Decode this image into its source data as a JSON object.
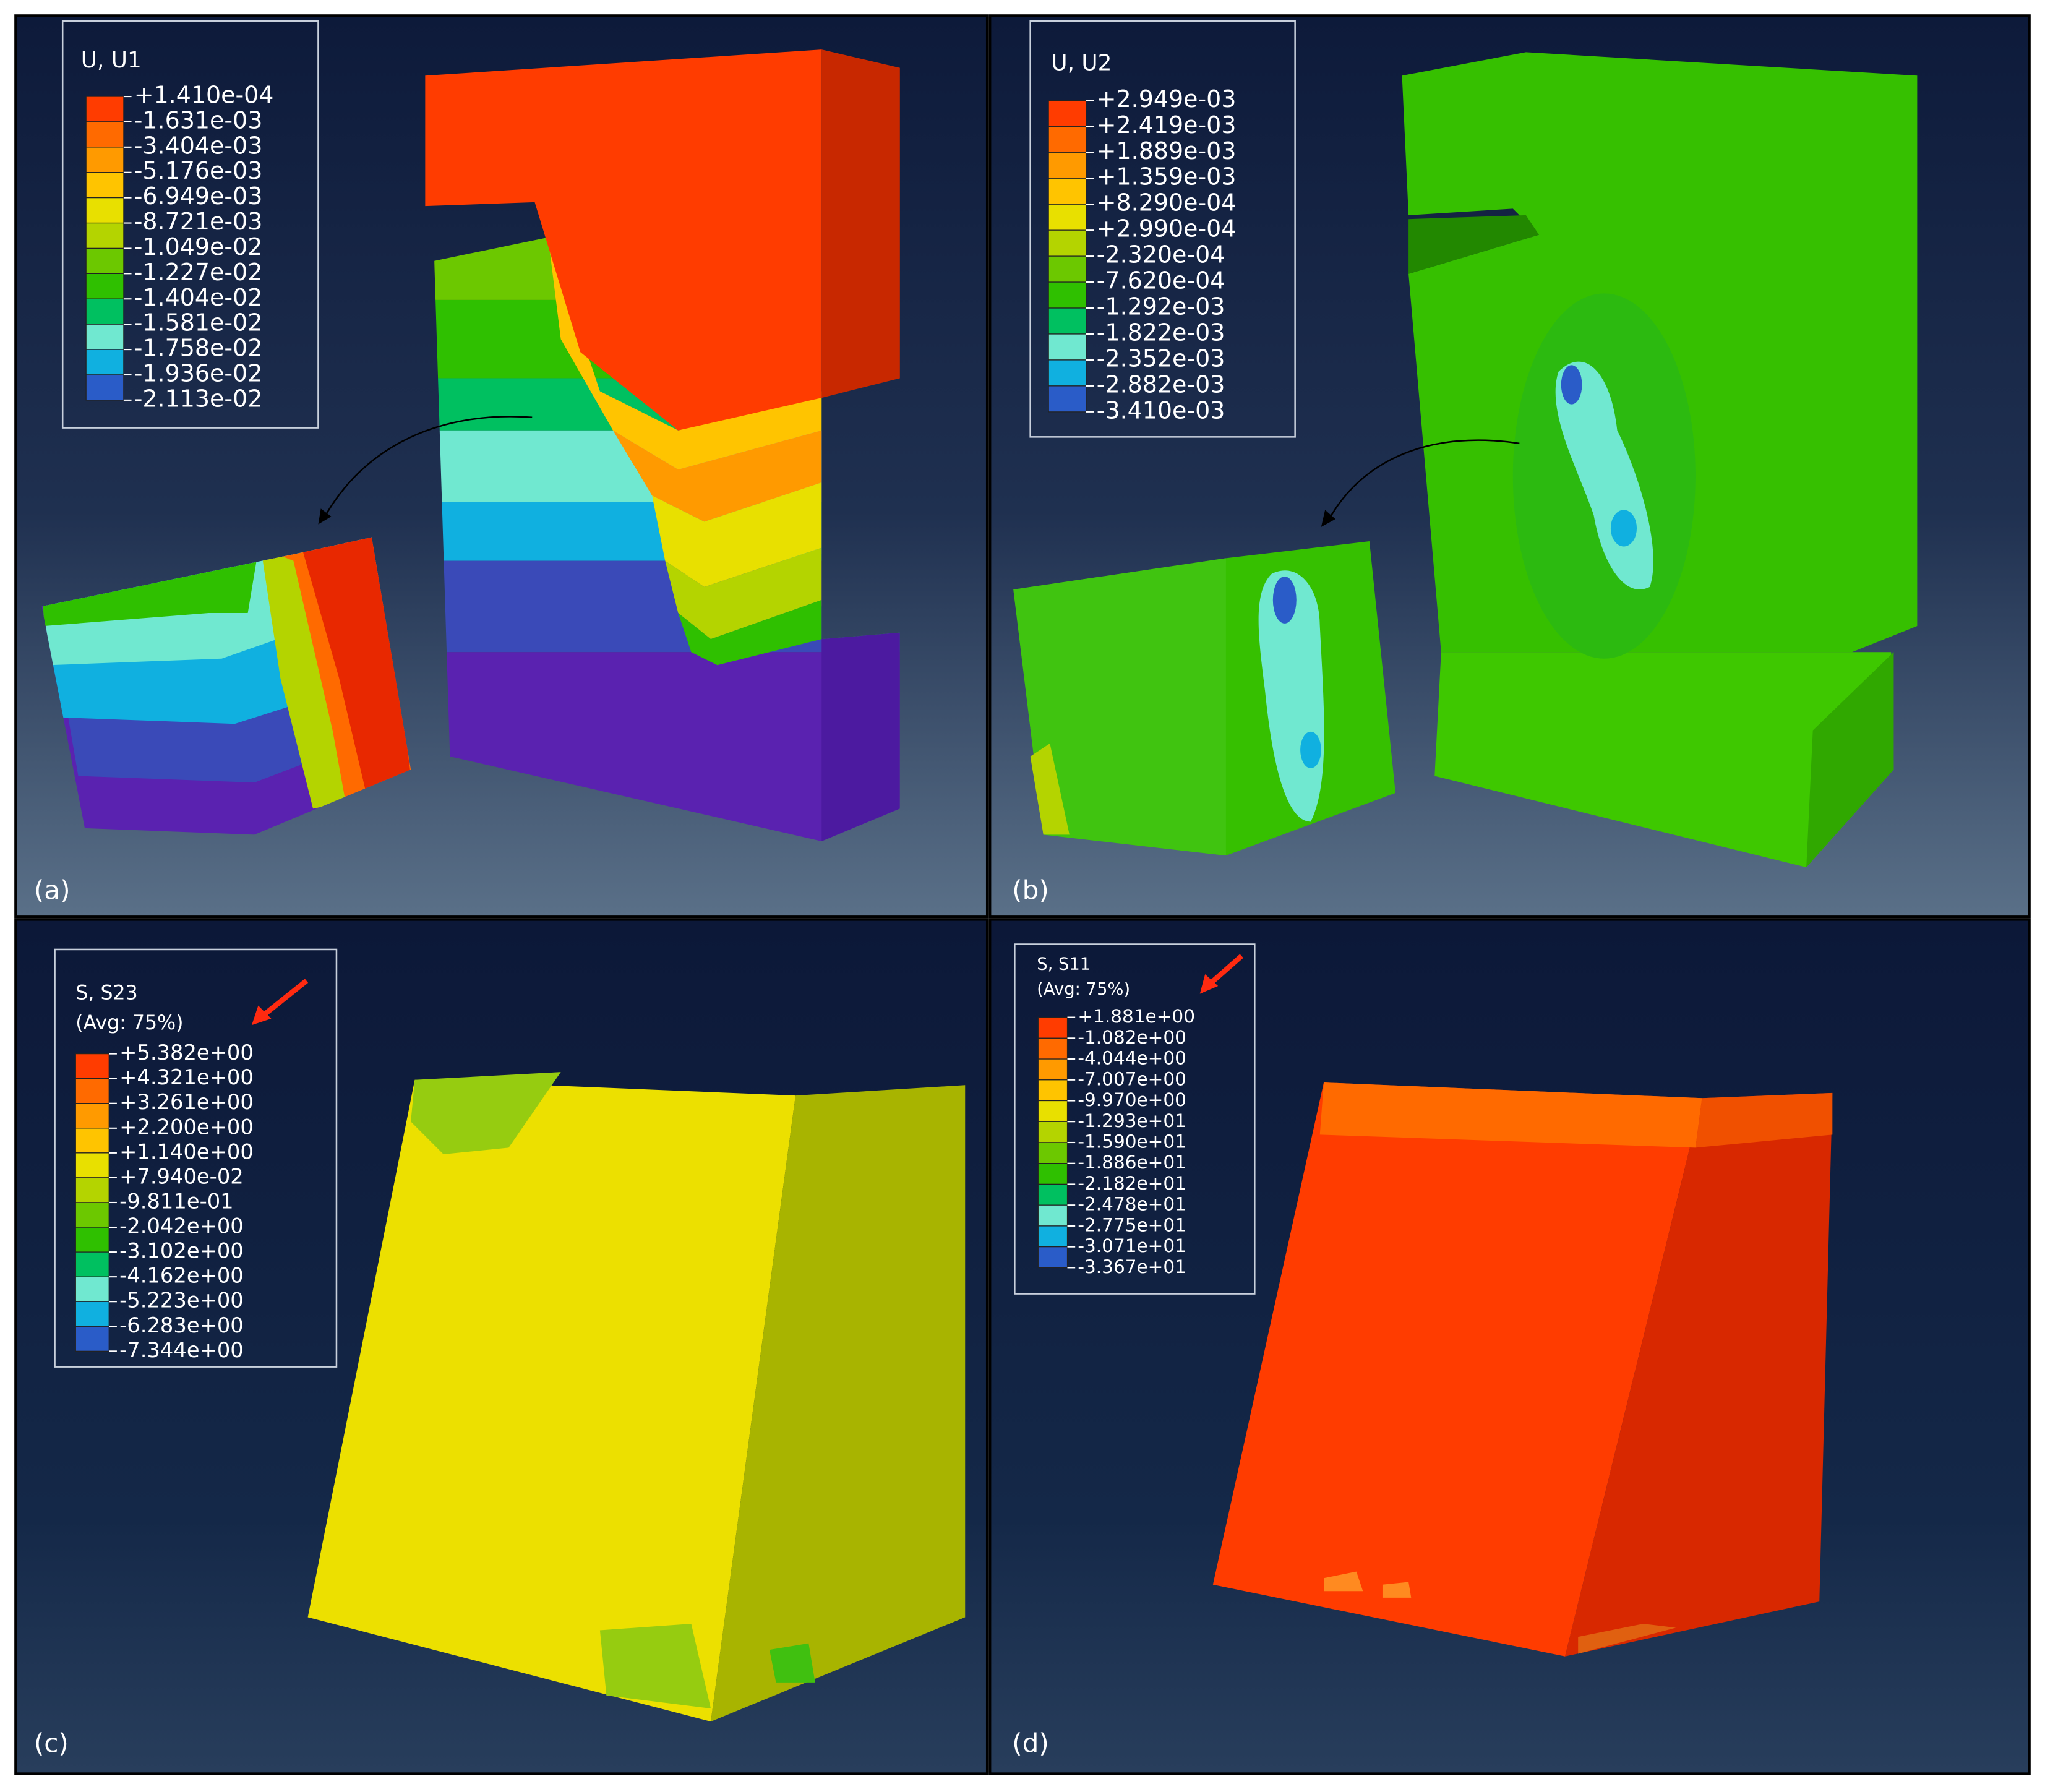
{
  "panels": [
    {
      "label": "(a)",
      "legend": {
        "title": "U, U1",
        "values": [
          "+1.410e-04",
          "-1.631e-03",
          "-3.404e-03",
          "-5.176e-03",
          "-6.949e-03",
          "-8.721e-03",
          "-1.049e-02",
          "-1.227e-02",
          "-1.404e-02",
          "-1.581e-02",
          "-1.758e-02",
          "-1.936e-02",
          "-2.113e-02"
        ]
      }
    },
    {
      "label": "(b)",
      "legend": {
        "title": "U, U2",
        "values": [
          "+2.949e-03",
          "+2.419e-03",
          "+1.889e-03",
          "+1.359e-03",
          "+8.290e-04",
          "+2.990e-04",
          "-2.320e-04",
          "-7.620e-04",
          "-1.292e-03",
          "-1.822e-03",
          "-2.352e-03",
          "-2.882e-03",
          "-3.410e-03"
        ]
      }
    },
    {
      "label": "(c)",
      "legend": {
        "title": "S, S23",
        "subtitle": "(Avg: 75%)",
        "values": [
          "+5.382e+00",
          "+4.321e+00",
          "+3.261e+00",
          "+2.200e+00",
          "+1.140e+00",
          "+7.940e-02",
          "-9.811e-01",
          "-2.042e+00",
          "-3.102e+00",
          "-4.162e+00",
          "-5.223e+00",
          "-6.283e+00",
          "-7.344e+00"
        ]
      }
    },
    {
      "label": "(d)",
      "legend": {
        "title": "S, S11",
        "subtitle": "(Avg: 75%)",
        "values": [
          "+1.881e+00",
          "-1.082e+00",
          "-4.044e+00",
          "-7.007e+00",
          "-9.970e+00",
          "-1.293e+01",
          "-1.590e+01",
          "-1.886e+01",
          "-2.182e+01",
          "-2.478e+01",
          "-2.775e+01",
          "-3.071e+01",
          "-3.367e+01"
        ]
      }
    }
  ]
}
